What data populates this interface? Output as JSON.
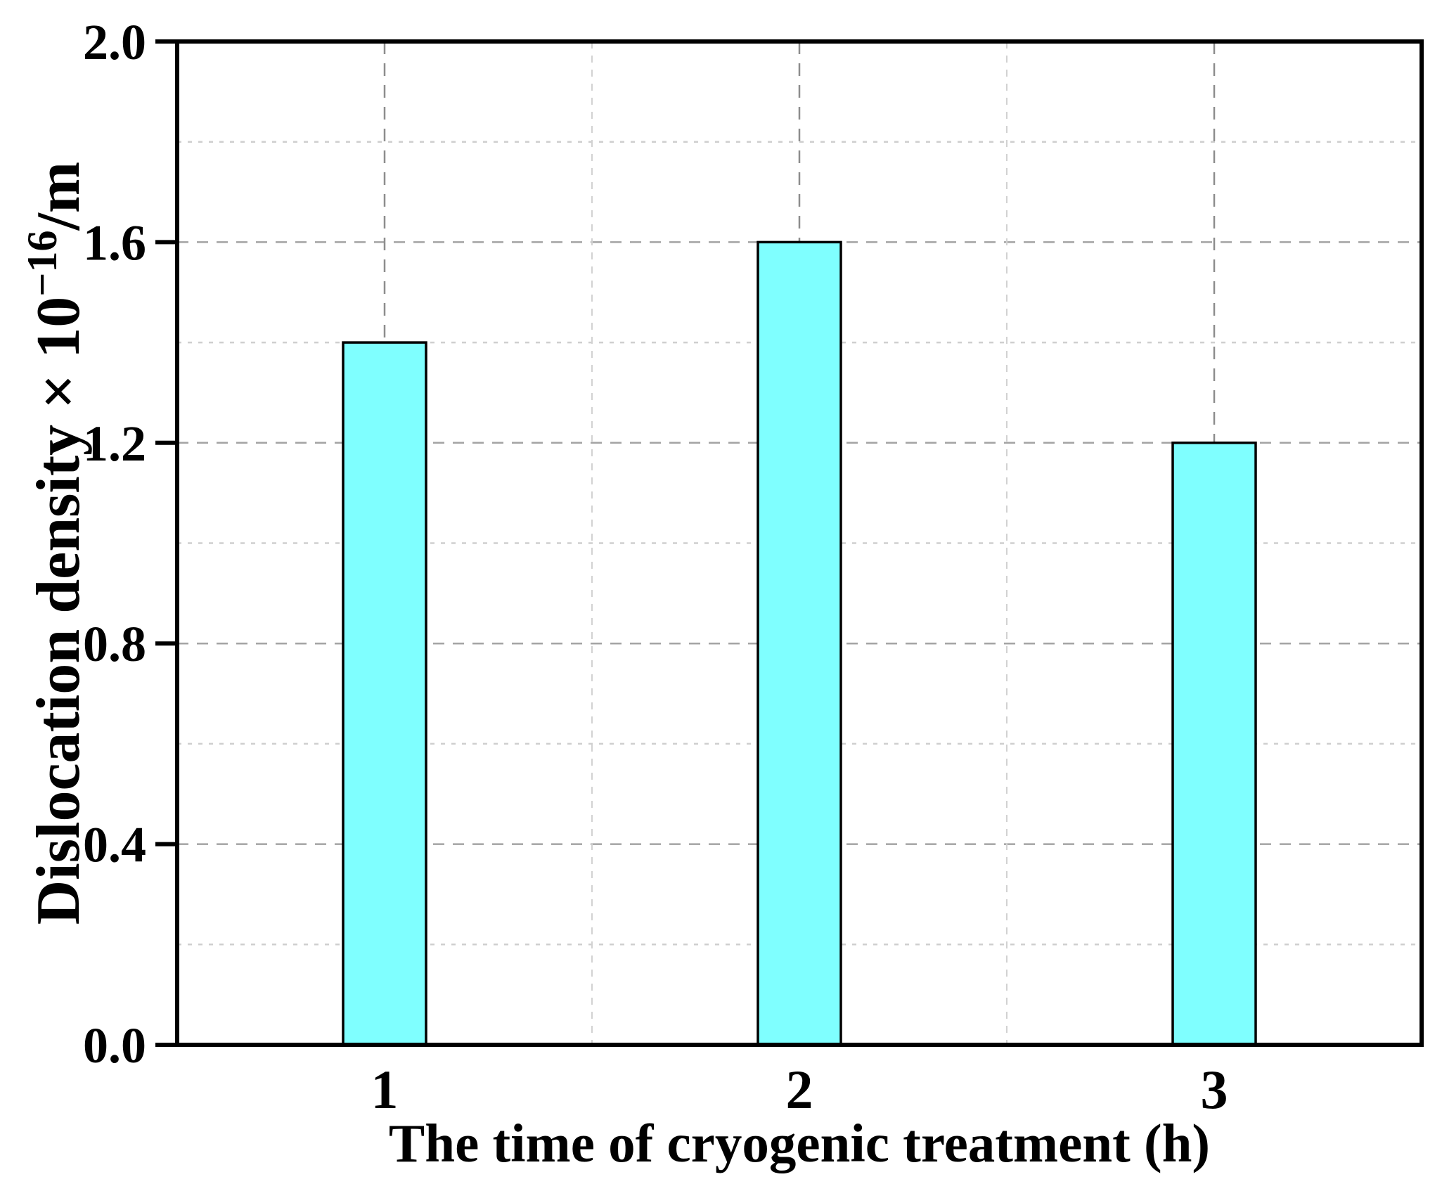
{
  "figure": {
    "background": "#ffffff"
  },
  "chart_data": {
    "type": "bar",
    "title": "",
    "categories": [
      "1",
      "2",
      "3"
    ],
    "values": [
      1.4,
      1.6,
      1.2
    ],
    "xlabel": "The time of cryogenic treatment (h)",
    "ylabel": "Dislocation density × 10⁻¹⁶/m",
    "ylabel_rich": {
      "base": "Dislocation density × 10",
      "superscript": "−16",
      "after": "/m"
    },
    "ylim": [
      0.0,
      2.0
    ],
    "ytick_labels": [
      "0.0",
      "0.4",
      "0.8",
      "1.2",
      "1.6",
      "2.0"
    ],
    "ytick_values": [
      0.0,
      0.4,
      0.8,
      1.2,
      1.6,
      2.0
    ],
    "minor_grid_values": [
      0.2,
      0.6,
      1.0,
      1.4,
      1.8
    ],
    "grid": "dashed",
    "legend": "none",
    "bar_fill": "#7FFFFF",
    "bar_edge": "#000000",
    "axis_color": "#000000",
    "major_grid_color": "#a3a3a3",
    "minor_grid_color": "#cfcfcf",
    "vgrid_center_color": "#8d8d8d",
    "vgrid_mid_color": "#d2d2d2"
  }
}
